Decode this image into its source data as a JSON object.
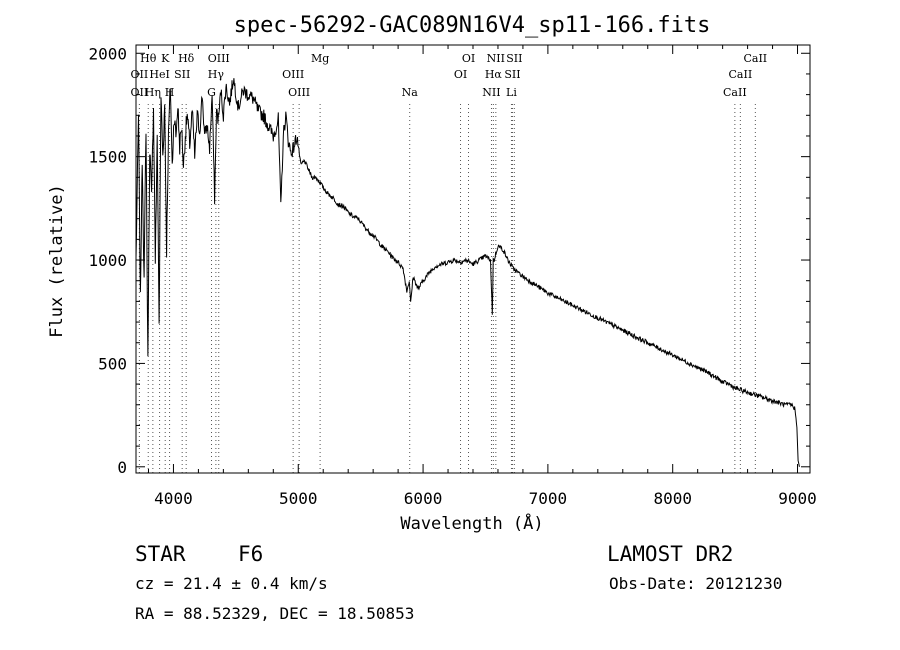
{
  "chart_data": {
    "type": "line",
    "title": "spec-56292-GAC089N16V4_sp11-166.fits",
    "xlabel": "Wavelength (Å)",
    "ylabel": "Flux (relative)",
    "xlim": [
      3700,
      9100
    ],
    "ylim": [
      -30,
      2040
    ],
    "xticks": [
      4000,
      5000,
      6000,
      7000,
      8000,
      9000
    ],
    "yticks": [
      0,
      500,
      1000,
      1500,
      2000
    ],
    "grid": false,
    "series": [
      {
        "x": [
          3700,
          3720,
          3735,
          3750,
          3765,
          3780,
          3795,
          3810,
          3825,
          3840,
          3855,
          3870,
          3885,
          3900,
          3915,
          3930,
          3945,
          3960,
          3975,
          3990,
          4005,
          4020,
          4035,
          4050,
          4065,
          4080,
          4095,
          4110,
          4130,
          4150,
          4170,
          4190,
          4210,
          4230,
          4250,
          4270,
          4290,
          4310,
          4330,
          4345,
          4360,
          4380,
          4400,
          4420,
          4450,
          4480,
          4520,
          4560,
          4600,
          4640,
          4680,
          4720,
          4760,
          4800,
          4840,
          4860,
          4880,
          4900,
          4920,
          4940,
          4960,
          4990,
          5020,
          5050,
          5080,
          5110,
          5140,
          5170,
          5200,
          5240,
          5280,
          5320,
          5360,
          5400,
          5440,
          5480,
          5520,
          5560,
          5600,
          5640,
          5680,
          5720,
          5760,
          5800,
          5840,
          5870,
          5890,
          5900,
          5920,
          5960,
          6000,
          6050,
          6100,
          6150,
          6200,
          6250,
          6300,
          6350,
          6400,
          6450,
          6500,
          6540,
          6555,
          6562,
          6570,
          6600,
          6640,
          6680,
          6720,
          6760,
          6800,
          6850,
          6900,
          6950,
          7000,
          7100,
          7200,
          7300,
          7400,
          7500,
          7600,
          7700,
          7800,
          7900,
          8000,
          8100,
          8200,
          8300,
          8400,
          8450,
          8500,
          8550,
          8600,
          8650,
          8700,
          8750,
          8800,
          8850,
          8900,
          8950,
          8980,
          8995,
          9005,
          9015
        ],
        "y": [
          1000,
          1700,
          800,
          1500,
          900,
          1650,
          500,
          1550,
          1300,
          1750,
          1000,
          1600,
          700,
          1800,
          1500,
          1750,
          1050,
          1600,
          1850,
          1450,
          1700,
          1600,
          1750,
          1550,
          1650,
          1450,
          1600,
          1700,
          1560,
          1720,
          1500,
          1700,
          1620,
          1800,
          1600,
          1650,
          1540,
          1800,
          1300,
          1720,
          1680,
          1820,
          1700,
          1840,
          1760,
          1880,
          1740,
          1820,
          1800,
          1780,
          1720,
          1700,
          1650,
          1600,
          1680,
          1250,
          1600,
          1700,
          1580,
          1520,
          1540,
          1600,
          1460,
          1480,
          1440,
          1400,
          1400,
          1380,
          1350,
          1320,
          1300,
          1270,
          1260,
          1230,
          1210,
          1200,
          1170,
          1140,
          1120,
          1090,
          1060,
          1040,
          1010,
          990,
          960,
          850,
          900,
          790,
          920,
          860,
          900,
          940,
          970,
          980,
          990,
          1000,
          990,
          1000,
          980,
          1000,
          1020,
          1000,
          740,
          1000,
          1000,
          1070,
          1050,
          1000,
          960,
          940,
          920,
          900,
          880,
          860,
          840,
          810,
          780,
          750,
          720,
          690,
          660,
          630,
          600,
          570,
          540,
          510,
          480,
          450,
          410,
          400,
          380,
          370,
          360,
          350,
          340,
          330,
          320,
          310,
          300,
          300,
          280,
          190,
          30,
          0
        ]
      }
    ],
    "lines": [
      {
        "label": "Hθ",
        "x": 3798,
        "tier": 1
      },
      {
        "label": "OII",
        "x": 3727,
        "tier": 2
      },
      {
        "label": "OII",
        "x": 3727,
        "tier": 3
      },
      {
        "label": "HeI",
        "x": 3889,
        "tier": 2
      },
      {
        "label": "Hη",
        "x": 3835,
        "tier": 3
      },
      {
        "label": "K",
        "x": 3934,
        "tier": 1
      },
      {
        "label": "H",
        "x": 3969,
        "tier": 3
      },
      {
        "label": "SII",
        "x": 4070,
        "tier": 2
      },
      {
        "label": "Hδ",
        "x": 4102,
        "tier": 1
      },
      {
        "label": "OIII",
        "x": 4363,
        "tier": 1
      },
      {
        "label": "Hγ",
        "x": 4340,
        "tier": 2
      },
      {
        "label": "G",
        "x": 4305,
        "tier": 3
      },
      {
        "label": "OIII",
        "x": 4959,
        "tier": 2
      },
      {
        "label": "OIII",
        "x": 5007,
        "tier": 3
      },
      {
        "label": "Mg",
        "x": 5175,
        "tier": 1
      },
      {
        "label": "Na",
        "x": 5893,
        "tier": 3
      },
      {
        "label": "OI",
        "x": 6364,
        "tier": 1
      },
      {
        "label": "OI",
        "x": 6300,
        "tier": 2
      },
      {
        "label": "NII",
        "x": 6583,
        "tier": 1
      },
      {
        "label": "Hα",
        "x": 6563,
        "tier": 2
      },
      {
        "label": "NII",
        "x": 6548,
        "tier": 3
      },
      {
        "label": "SII",
        "x": 6731,
        "tier": 1
      },
      {
        "label": "SII",
        "x": 6716,
        "tier": 2
      },
      {
        "label": "Li",
        "x": 6708,
        "tier": 3
      },
      {
        "label": "CaII",
        "x": 8662,
        "tier": 1
      },
      {
        "label": "CaII",
        "x": 8542,
        "tier": 2
      },
      {
        "label": "CaII",
        "x": 8498,
        "tier": 3
      }
    ]
  },
  "info": {
    "obj_type": "STAR",
    "subclass": "F6",
    "survey": "LAMOST DR2",
    "redshift": "cz = 21.4 ± 0.4 km/s",
    "obs_date": "Obs-Date: 20121230",
    "coords": "RA =  88.52329, DEC =  18.50853"
  }
}
